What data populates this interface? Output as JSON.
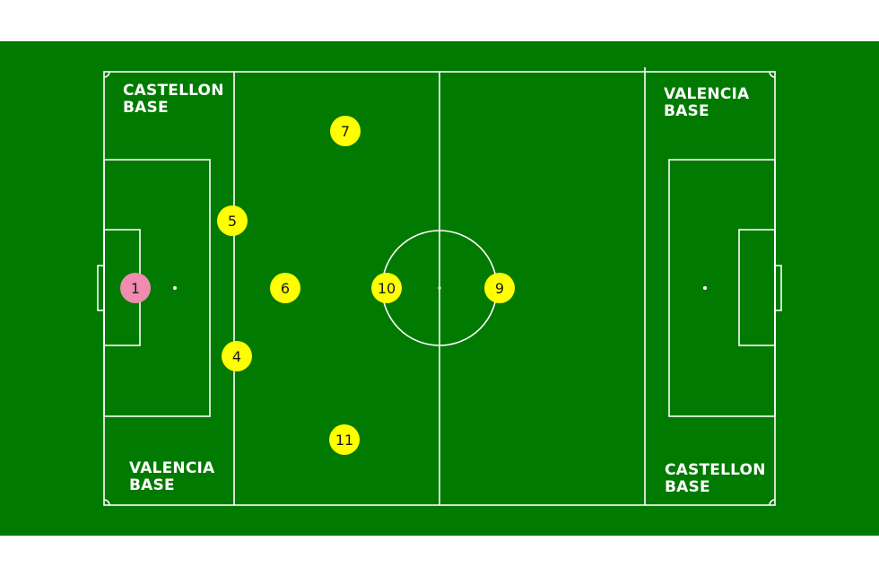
{
  "colors": {
    "background": "#ffffff",
    "pitch": "#007a00",
    "lines": "#ffffff",
    "player": "#ffff00",
    "goalkeeper": "#f08cb0"
  },
  "base_labels": {
    "top_left": {
      "line1": "CASTELLON",
      "line2": "BASE"
    },
    "top_right": {
      "line1": "VALENCIA",
      "line2": "BASE"
    },
    "bottom_left": {
      "line1": "VALENCIA",
      "line2": "BASE"
    },
    "bottom_right": {
      "line1": "CASTELLON",
      "line2": "BASE"
    }
  },
  "players": [
    {
      "number": "1",
      "role": "goalkeeper"
    },
    {
      "number": "5",
      "role": "outfield"
    },
    {
      "number": "4",
      "role": "outfield"
    },
    {
      "number": "6",
      "role": "outfield"
    },
    {
      "number": "7",
      "role": "outfield"
    },
    {
      "number": "11",
      "role": "outfield"
    },
    {
      "number": "10",
      "role": "outfield"
    },
    {
      "number": "9",
      "role": "outfield"
    }
  ]
}
